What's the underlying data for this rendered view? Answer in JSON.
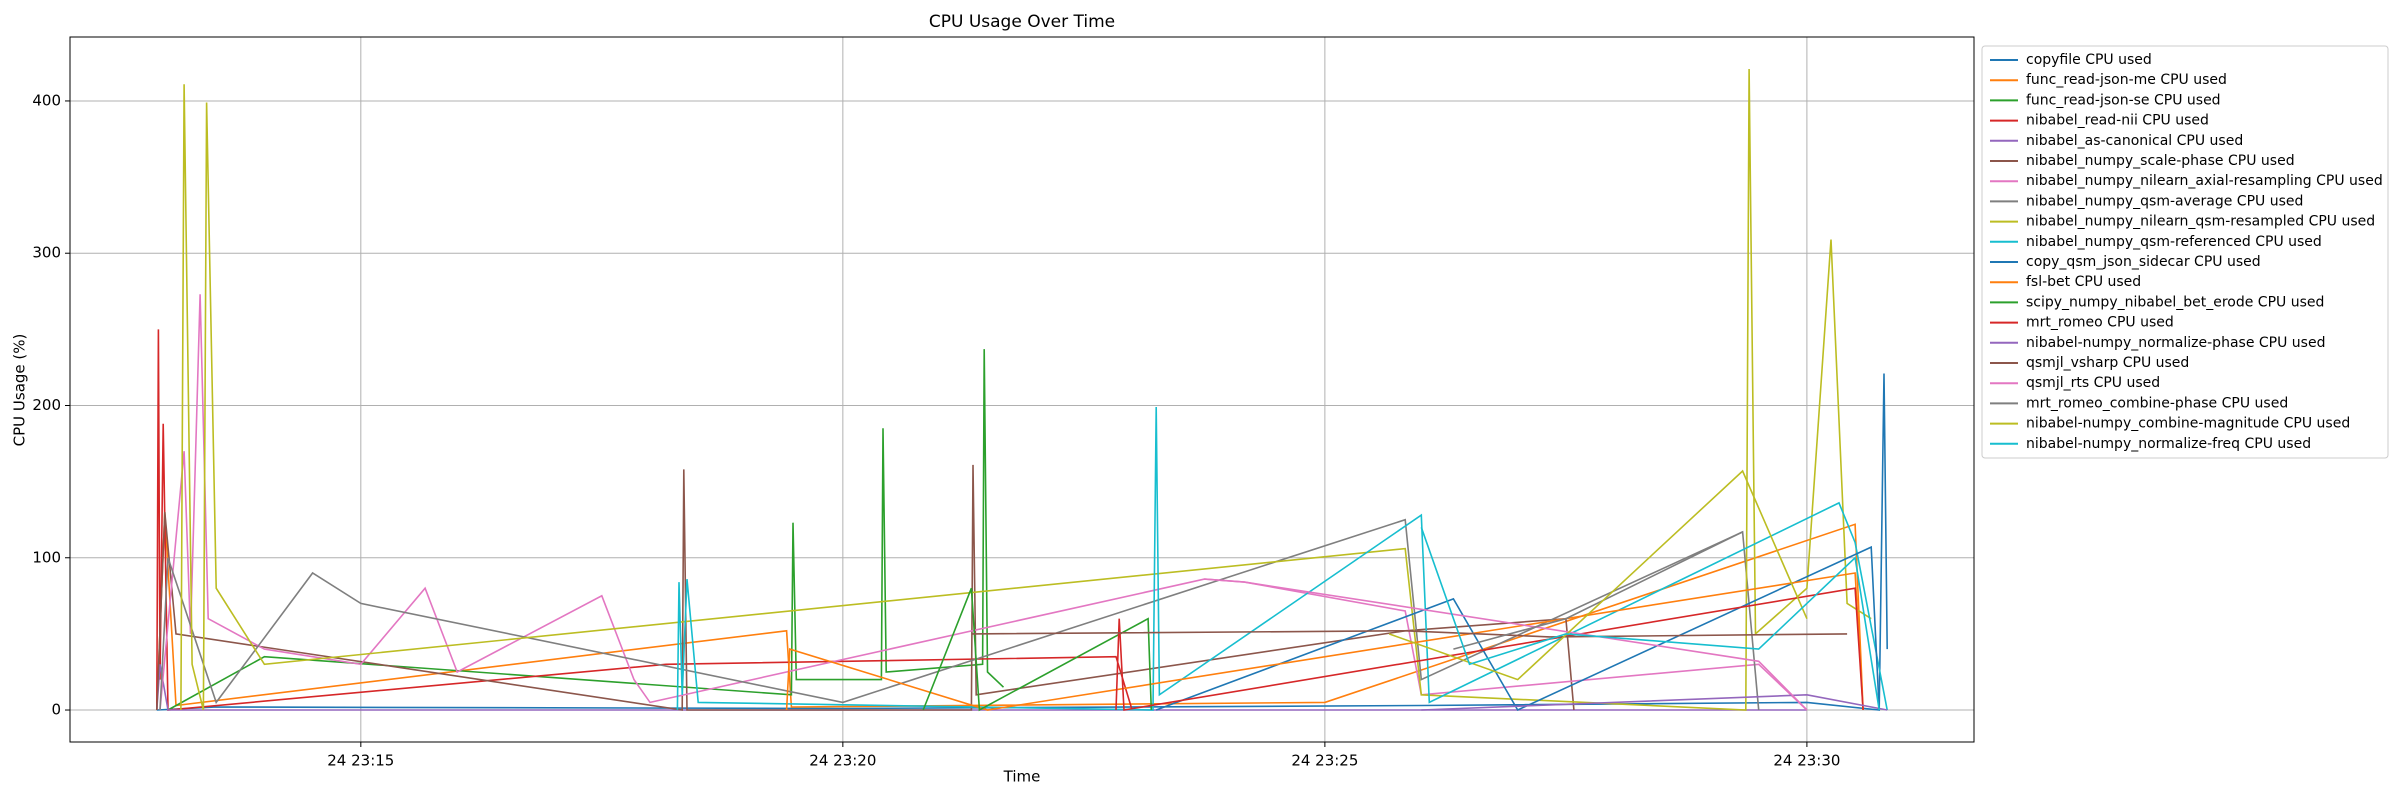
{
  "chart_data": {
    "type": "line",
    "title": "CPU Usage Over Time",
    "x_label": "Time",
    "y_label": "CPU Usage (%)",
    "xlim": [
      "24 23:11:59",
      "24 23:31:44"
    ],
    "xticks": [
      "24 23:15",
      "24 23:20",
      "24 23:25",
      "24 23:30"
    ],
    "ylim": [
      -21,
      442
    ],
    "yticks": [
      0,
      100,
      200,
      300,
      400
    ],
    "grid": true,
    "legend": "outside right",
    "series": [
      {
        "name": "copyfile CPU used",
        "color": "#1f77b4",
        "x": [
          "24 23:12:53",
          "24 23:13:30",
          "24 23:20:00",
          "24 23:26:00",
          "24 23:30:00",
          "24 23:30:45",
          "24 23:30:48",
          "24 23:30:50"
        ],
        "values": [
          0,
          2,
          1,
          3,
          5,
          0,
          221,
          40
        ]
      },
      {
        "name": "func_read-json-me CPU used",
        "color": "#ff7f0e",
        "x": [
          "24 23:12:53",
          "24 23:12:58",
          "24 23:13:05",
          "24 23:19:25",
          "24 23:19:28",
          "24 23:25:00",
          "24 23:30:30",
          "24 23:30:35"
        ],
        "values": [
          0,
          130,
          3,
          52,
          2,
          5,
          122,
          0
        ]
      },
      {
        "name": "func_read-json-se CPU used",
        "color": "#2ca02c",
        "x": [
          "24 23:13:00",
          "24 23:14:00",
          "24 23:19:28",
          "24 23:19:29",
          "24 23:19:31",
          "24 23:20:24",
          "24 23:20:25",
          "24 23:20:27",
          "24 23:21:27",
          "24 23:21:28",
          "24 23:21:30",
          "24 23:21:40"
        ],
        "values": [
          0,
          35,
          10,
          123,
          20,
          20,
          185,
          25,
          30,
          237,
          25,
          15
        ]
      },
      {
        "name": "nibabel_read-nii CPU used",
        "color": "#d62728",
        "x": [
          "24 23:12:53",
          "24 23:12:54",
          "24 23:12:55",
          "24 23:12:57",
          "24 23:13:00",
          "24 23:18:10",
          "24 23:22:50",
          "24 23:23:00"
        ],
        "values": [
          0,
          250,
          20,
          188,
          0,
          30,
          35,
          0
        ]
      },
      {
        "name": "nibabel_as-canonical CPU used",
        "color": "#9467bd",
        "x": [
          "24 23:12:53",
          "24 23:12:55",
          "24 23:13:00",
          "24 23:30:00"
        ],
        "values": [
          0,
          30,
          0,
          0
        ]
      },
      {
        "name": "nibabel_numpy_scale-phase CPU used",
        "color": "#8c564b",
        "x": [
          "24 23:12:53",
          "24 23:12:58",
          "24 23:13:05",
          "24 23:18:20",
          "24 23:18:21",
          "24 23:18:23",
          "24 23:21:20",
          "24 23:21:21",
          "24 23:21:23",
          "24 23:25:50",
          "24 23:27:30",
          "24 23:27:35"
        ],
        "values": [
          0,
          130,
          50,
          0,
          158,
          0,
          0,
          161,
          10,
          52,
          60,
          0
        ]
      },
      {
        "name": "nibabel_numpy_nilearn_axial-resampling CPU used",
        "color": "#e377c2",
        "x": [
          "24 23:12:55",
          "24 23:13:10",
          "24 23:13:14",
          "24 23:13:20",
          "24 23:13:25",
          "24 23:14:00",
          "24 23:15:00",
          "24 23:15:40",
          "24 23:16:00",
          "24 23:17:30",
          "24 23:17:50",
          "24 23:18:00",
          "24 23:23:45",
          "24 23:24:10",
          "24 23:25:50",
          "24 23:26:00",
          "24 23:29:30",
          "24 23:30:00"
        ],
        "values": [
          0,
          170,
          50,
          273,
          60,
          40,
          30,
          80,
          25,
          75,
          20,
          5,
          86,
          84,
          65,
          10,
          30,
          0
        ]
      },
      {
        "name": "nibabel_numpy_qsm-average CPU used",
        "color": "#7f7f7f",
        "x": [
          "24 23:12:55",
          "24 23:13:00",
          "24 23:13:30",
          "24 23:14:30",
          "24 23:15:00",
          "24 23:20:00",
          "24 23:25:50",
          "24 23:26:00",
          "24 23:29:20",
          "24 23:29:30"
        ],
        "values": [
          0,
          100,
          5,
          90,
          70,
          5,
          125,
          20,
          117,
          0
        ]
      },
      {
        "name": "nibabel_numpy_nilearn_qsm-resampled CPU used",
        "color": "#bcbd22",
        "x": [
          "24 23:13:08",
          "24 23:13:10",
          "24 23:13:15",
          "24 23:13:22",
          "24 23:13:24",
          "24 23:13:30",
          "24 23:14:00",
          "24 23:25:50",
          "24 23:26:00",
          "24 23:29:22",
          "24 23:29:24",
          "24 23:29:28",
          "24 23:30:00",
          "24 23:30:15",
          "24 23:30:25",
          "24 23:30:40"
        ],
        "values": [
          0,
          411,
          30,
          0,
          399,
          80,
          30,
          106,
          10,
          0,
          421,
          50,
          80,
          309,
          70,
          60
        ]
      },
      {
        "name": "nibabel_numpy_qsm-referenced CPU used",
        "color": "#17becf",
        "x": [
          "24 23:18:17",
          "24 23:18:18",
          "24 23:18:20",
          "24 23:18:23",
          "24 23:18:30",
          "24 23:23:13",
          "24 23:23:15",
          "24 23:23:17",
          "24 23:26:00",
          "24 23:26:05",
          "24 23:30:20",
          "24 23:30:30",
          "24 23:30:50"
        ],
        "values": [
          0,
          84,
          10,
          86,
          5,
          0,
          199,
          10,
          128,
          5,
          136,
          110,
          0
        ]
      },
      {
        "name": "copy_qsm_json_sidecar CPU used",
        "color": "#1f77b4",
        "x": [
          "24 23:23:15",
          "24 23:26:20",
          "24 23:27:00",
          "24 23:30:40",
          "24 23:30:45"
        ],
        "values": [
          0,
          73,
          0,
          107,
          0
        ]
      },
      {
        "name": "fsl-bet CPU used",
        "color": "#ff7f0e",
        "x": [
          "24 23:19:25",
          "24 23:19:27",
          "24 23:21:30",
          "24 23:30:30",
          "24 23:30:35"
        ],
        "values": [
          0,
          40,
          0,
          90,
          0
        ]
      },
      {
        "name": "scipy_numpy_nibabel_bet_erode CPU used",
        "color": "#2ca02c",
        "x": [
          "24 23:20:50",
          "24 23:21:20",
          "24 23:21:25",
          "24 23:23:10",
          "24 23:23:12"
        ],
        "values": [
          0,
          80,
          0,
          60,
          0
        ]
      },
      {
        "name": "mrt_romeo CPU used",
        "color": "#d62728",
        "x": [
          "24 23:22:50",
          "24 23:22:52",
          "24 23:22:55",
          "24 23:30:30",
          "24 23:30:35"
        ],
        "values": [
          0,
          60,
          0,
          80,
          0
        ]
      },
      {
        "name": "nibabel-numpy_normalize-phase CPU used",
        "color": "#9467bd",
        "x": [
          "24 23:26:00",
          "24 23:30:00",
          "24 23:30:50"
        ],
        "values": [
          0,
          10,
          0
        ]
      },
      {
        "name": "qsmjl_vsharp CPU used",
        "color": "#8c564b",
        "x": [
          "24 23:21:20",
          "24 23:25:50",
          "24 23:27:20",
          "24 23:30:25"
        ],
        "values": [
          50,
          52,
          48,
          50
        ]
      },
      {
        "name": "qsmjl_rts CPU used",
        "color": "#e377c2",
        "x": [
          "24 23:23:45",
          "24 23:24:10",
          "24 23:29:30",
          "24 23:30:00"
        ],
        "values": [
          86,
          84,
          32,
          0
        ]
      },
      {
        "name": "mrt_romeo_combine-phase CPU used",
        "color": "#7f7f7f",
        "x": [
          "24 23:26:20",
          "24 23:27:30",
          "24 23:29:20"
        ],
        "values": [
          40,
          60,
          117
        ]
      },
      {
        "name": "nibabel-numpy_combine-magnitude CPU used",
        "color": "#bcbd22",
        "x": [
          "24 23:25:40",
          "24 23:27:00",
          "24 23:29:20",
          "24 23:30:00"
        ],
        "values": [
          50,
          20,
          157,
          60
        ]
      },
      {
        "name": "nibabel-numpy_normalize-freq CPU used",
        "color": "#17becf",
        "x": [
          "24 23:26:00",
          "24 23:26:30",
          "24 23:27:30",
          "24 23:29:30",
          "24 23:30:30",
          "24 23:30:45"
        ],
        "values": [
          120,
          30,
          50,
          40,
          100,
          0
        ]
      }
    ]
  }
}
